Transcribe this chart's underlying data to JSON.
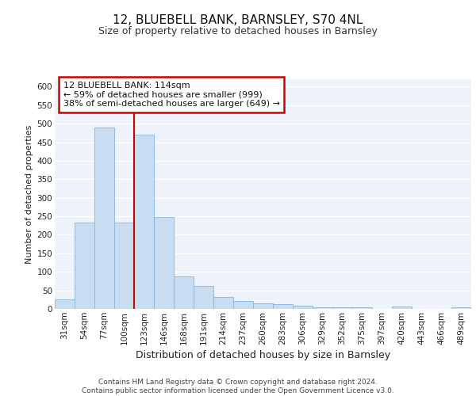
{
  "title1": "12, BLUEBELL BANK, BARNSLEY, S70 4NL",
  "title2": "Size of property relative to detached houses in Barnsley",
  "xlabel": "Distribution of detached houses by size in Barnsley",
  "ylabel": "Number of detached properties",
  "categories": [
    "31sqm",
    "54sqm",
    "77sqm",
    "100sqm",
    "123sqm",
    "146sqm",
    "168sqm",
    "191sqm",
    "214sqm",
    "237sqm",
    "260sqm",
    "283sqm",
    "306sqm",
    "329sqm",
    "352sqm",
    "375sqm",
    "397sqm",
    "420sqm",
    "443sqm",
    "466sqm",
    "489sqm"
  ],
  "values": [
    25,
    232,
    490,
    232,
    470,
    248,
    88,
    63,
    32,
    22,
    14,
    12,
    8,
    5,
    5,
    5,
    0,
    6,
    0,
    0,
    5
  ],
  "bar_color": "#c9ddf2",
  "bar_edge_color": "#8ab4d8",
  "red_line_color": "#cc0000",
  "annotation_line1": "12 BLUEBELL BANK: 114sqm",
  "annotation_line2": "← 59% of detached houses are smaller (999)",
  "annotation_line3": "38% of semi-detached houses are larger (649) →",
  "annotation_box_color": "#ffffff",
  "annotation_box_edge": "#cc0000",
  "ylim_max": 620,
  "yticks": [
    0,
    50,
    100,
    150,
    200,
    250,
    300,
    350,
    400,
    450,
    500,
    550,
    600
  ],
  "footer": "Contains HM Land Registry data © Crown copyright and database right 2024.\nContains public sector information licensed under the Open Government Licence v3.0.",
  "bg_color": "#edf2fb",
  "grid_color": "#ffffff",
  "title1_fontsize": 11,
  "title2_fontsize": 9,
  "ylabel_fontsize": 8,
  "xlabel_fontsize": 9,
  "tick_fontsize": 7.5,
  "footer_fontsize": 6.5,
  "annot_fontsize": 8
}
